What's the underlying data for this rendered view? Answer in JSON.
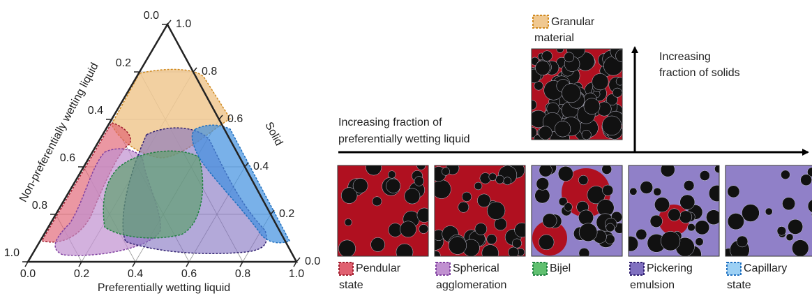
{
  "ternary": {
    "left_axis": {
      "title": "Non-preferentially wetting liquid",
      "ticks": [
        "0.0",
        "0.2",
        "0.4",
        "0.6",
        "0.8",
        "1.0"
      ]
    },
    "right_axis": {
      "title": "Solid",
      "ticks": [
        "1.0",
        "0.8",
        "0.6",
        "0.4",
        "0.2",
        "0.0"
      ]
    },
    "bottom_axis": {
      "title": "Preferentially wetting liquid",
      "ticks": [
        "0.0",
        "0.2",
        "0.4",
        "0.6",
        "0.8",
        "1.0"
      ]
    }
  },
  "arrows": {
    "horizontal": [
      "Increasing fraction of",
      "preferentially wetting liquid"
    ],
    "vertical": [
      "Increasing",
      "fraction of solids"
    ]
  },
  "granular": [
    "Granular",
    "material"
  ],
  "states": [
    {
      "label": [
        "Pendular",
        "state"
      ]
    },
    {
      "label": [
        "Spherical",
        "agglomeration"
      ]
    },
    {
      "label": [
        "Bijel"
      ]
    },
    {
      "label": [
        "Pickering",
        "emulsion"
      ]
    },
    {
      "label": [
        "Capillary",
        "state"
      ]
    }
  ]
}
